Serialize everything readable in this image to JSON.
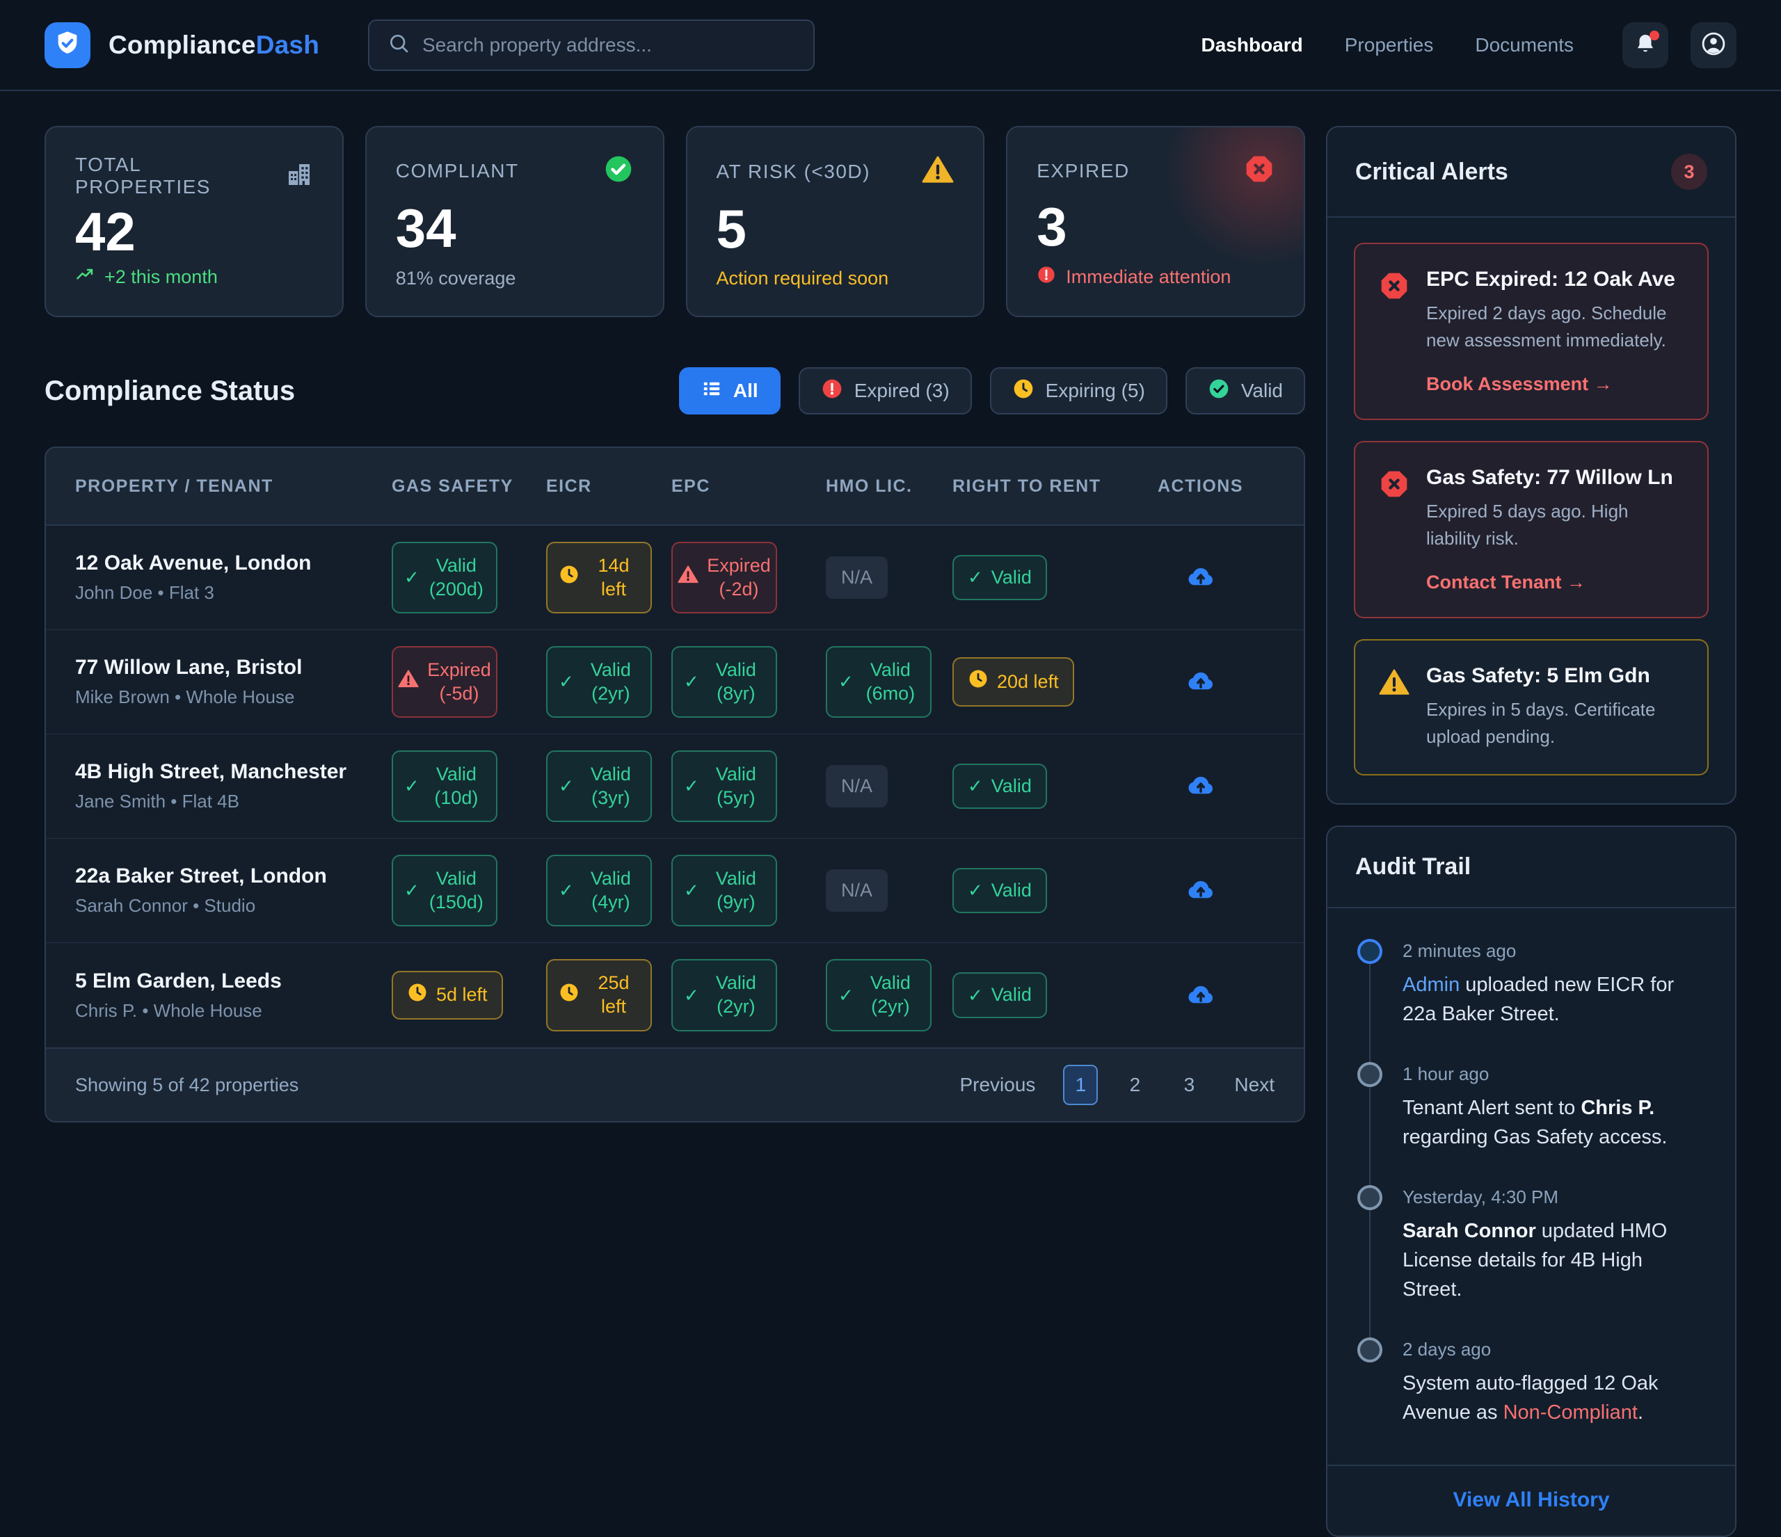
{
  "brand": {
    "name_a": "Compliance",
    "name_b": "Dash",
    "logo_icon": "shield-check-icon"
  },
  "search": {
    "placeholder": "Search property address...",
    "icon": "search-icon"
  },
  "nav": {
    "items": [
      {
        "label": "Dashboard",
        "active": true
      },
      {
        "label": "Properties",
        "active": false
      },
      {
        "label": "Documents",
        "active": false
      }
    ],
    "bell_icon": "bell-icon",
    "bell_unread": true,
    "avatar_icon": "user-avatar-icon"
  },
  "colors": {
    "accent": "#2f81f7",
    "success": "#34d399",
    "warning": "#fbbf24",
    "danger": "#f87171"
  },
  "stats": [
    {
      "label": "TOTAL PROPERTIES",
      "icon": "building-icon",
      "value": "42",
      "sub": "+2 this month",
      "sub_icon": "trending-up-icon"
    },
    {
      "label": "COMPLIANT",
      "icon": "check-circle-icon",
      "value": "34",
      "sub": "81% coverage"
    },
    {
      "label": "AT RISK (<30D)",
      "icon": "warning-triangle-icon",
      "value": "5",
      "sub": "Action required soon"
    },
    {
      "label": "EXPIRED",
      "icon": "octagon-x-icon",
      "value": "3",
      "sub": "Immediate attention",
      "sub_icon": "alert-circle-icon"
    }
  ],
  "section": {
    "title": "Compliance Status"
  },
  "filters": [
    {
      "label": "All",
      "icon": "list-icon",
      "active": true
    },
    {
      "label": "Expired (3)",
      "icon": "alert-circle-icon",
      "active": false
    },
    {
      "label": "Expiring (5)",
      "icon": "clock-icon",
      "active": false
    },
    {
      "label": "Valid",
      "icon": "check-circle-icon",
      "active": false
    }
  ],
  "table": {
    "columns": [
      "PROPERTY / TENANT",
      "GAS SAFETY",
      "EICR",
      "EPC",
      "HMO LIC.",
      "RIGHT TO RENT",
      "ACTIONS"
    ],
    "action_icon": "cloud-upload-icon",
    "rows": [
      {
        "property": "12 Oak Avenue, London",
        "tenant": "John Doe • Flat 3",
        "cells": [
          {
            "type": "valid",
            "label": "Valid (200d)",
            "wrap": true
          },
          {
            "type": "warn",
            "label": "14d left",
            "wrap": true
          },
          {
            "type": "expired",
            "label": "Expired (-2d)",
            "wrap": true
          },
          {
            "type": "na",
            "label": "N/A"
          },
          {
            "type": "valid",
            "label": "Valid",
            "wrap": false
          }
        ]
      },
      {
        "property": "77 Willow Lane, Bristol",
        "tenant": "Mike Brown • Whole House",
        "cells": [
          {
            "type": "expired",
            "label": "Expired (-5d)",
            "wrap": true
          },
          {
            "type": "valid",
            "label": "Valid (2yr)",
            "wrap": true
          },
          {
            "type": "valid",
            "label": "Valid (8yr)",
            "wrap": true
          },
          {
            "type": "valid",
            "label": "Valid (6mo)",
            "wrap": true
          },
          {
            "type": "warn",
            "label": "20d left",
            "wrap": false
          }
        ]
      },
      {
        "property": "4B High Street, Manchester",
        "tenant": "Jane Smith • Flat 4B",
        "cells": [
          {
            "type": "valid",
            "label": "Valid (10d)",
            "wrap": true
          },
          {
            "type": "valid",
            "label": "Valid (3yr)",
            "wrap": true
          },
          {
            "type": "valid",
            "label": "Valid (5yr)",
            "wrap": true
          },
          {
            "type": "na",
            "label": "N/A"
          },
          {
            "type": "valid",
            "label": "Valid",
            "wrap": false
          }
        ]
      },
      {
        "property": "22a Baker Street, London",
        "tenant": "Sarah Connor • Studio",
        "cells": [
          {
            "type": "valid",
            "label": "Valid (150d)",
            "wrap": true
          },
          {
            "type": "valid",
            "label": "Valid (4yr)",
            "wrap": true
          },
          {
            "type": "valid",
            "label": "Valid (9yr)",
            "wrap": true
          },
          {
            "type": "na",
            "label": "N/A"
          },
          {
            "type": "valid",
            "label": "Valid",
            "wrap": false
          }
        ]
      },
      {
        "property": "5 Elm Garden, Leeds",
        "tenant": "Chris P. • Whole House",
        "cells": [
          {
            "type": "warn",
            "label": "5d left",
            "wrap": false
          },
          {
            "type": "warn",
            "label": "25d left",
            "wrap": true
          },
          {
            "type": "valid",
            "label": "Valid (2yr)",
            "wrap": true
          },
          {
            "type": "valid",
            "label": "Valid (2yr)",
            "wrap": true
          },
          {
            "type": "valid",
            "label": "Valid",
            "wrap": false
          }
        ]
      }
    ],
    "footer": {
      "summary": "Showing 5 of 42 properties",
      "prev": "Previous",
      "next": "Next",
      "pages": [
        "1",
        "2",
        "3"
      ],
      "active_page": "1"
    }
  },
  "alerts": {
    "title": "Critical Alerts",
    "count": "3",
    "items": [
      {
        "severity": "critical",
        "icon": "octagon-x-icon",
        "title": "EPC Expired: 12 Oak Ave",
        "desc": "Expired 2 days ago. Schedule new assessment immediately.",
        "link": "Book Assessment →"
      },
      {
        "severity": "critical",
        "icon": "octagon-x-icon",
        "title": "Gas Safety: 77 Willow Ln",
        "desc": "Expired 5 days ago. High liability risk.",
        "link": "Contact Tenant →"
      },
      {
        "severity": "warning",
        "icon": "warning-triangle-icon",
        "title": "Gas Safety: 5 Elm Gdn",
        "desc": "Expires in 5 days. Certificate upload pending.",
        "link": null
      }
    ]
  },
  "audit": {
    "title": "Audit Trail",
    "items": [
      {
        "time": "2 minutes ago",
        "active": true,
        "segments": [
          {
            "text": "Admin",
            "style": "link"
          },
          {
            "text": " uploaded new EICR for 22a Baker Street."
          }
        ]
      },
      {
        "time": "1 hour ago",
        "active": false,
        "segments": [
          {
            "text": "Tenant Alert sent to "
          },
          {
            "text": "Chris P.",
            "style": "bold"
          },
          {
            "text": " regarding Gas Safety access."
          }
        ]
      },
      {
        "time": "Yesterday, 4:30 PM",
        "active": false,
        "segments": [
          {
            "text": "Sarah Connor",
            "style": "bold"
          },
          {
            "text": " updated HMO License details for 4B High Street."
          }
        ]
      },
      {
        "time": "2 days ago",
        "active": false,
        "segments": [
          {
            "text": "System auto-flagged 12 Oak Avenue as "
          },
          {
            "text": "Non-Compliant",
            "style": "danger"
          },
          {
            "text": "."
          }
        ]
      }
    ],
    "footer_link": "View All History"
  }
}
